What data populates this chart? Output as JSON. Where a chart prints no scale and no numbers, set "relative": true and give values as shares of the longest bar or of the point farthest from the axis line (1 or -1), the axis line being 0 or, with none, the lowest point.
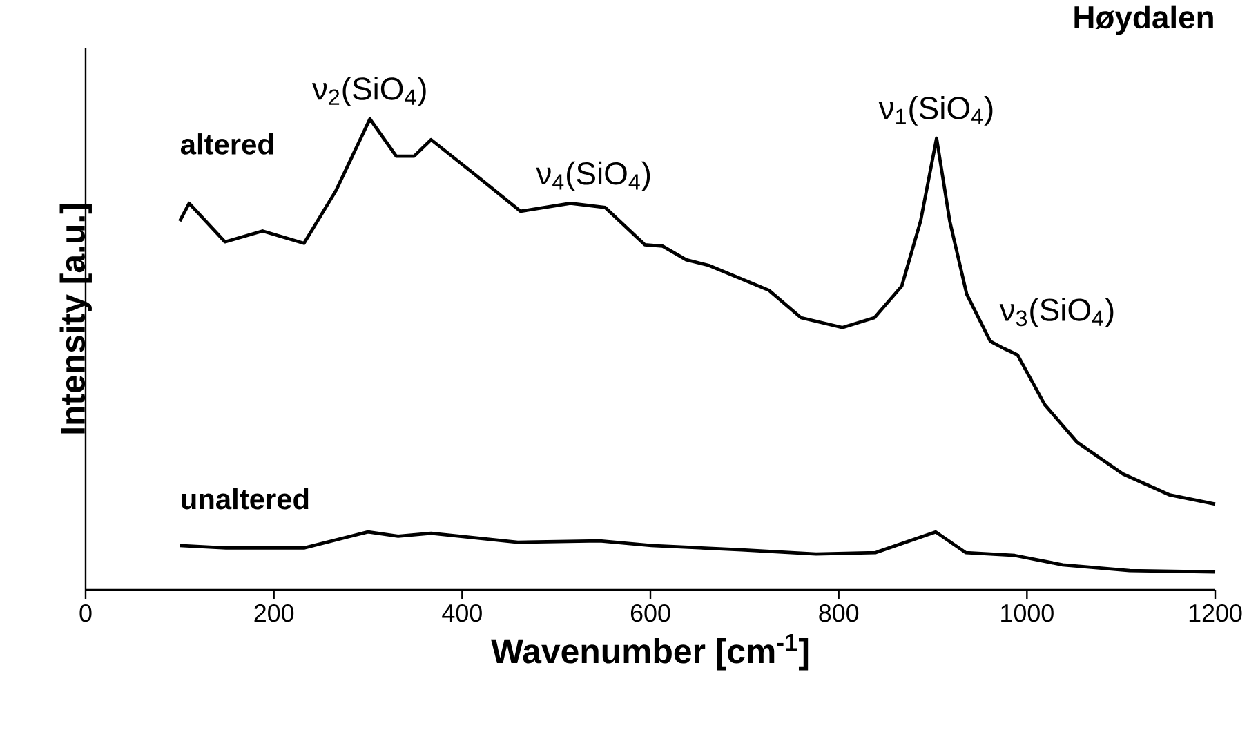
{
  "chart_data": {
    "type": "line",
    "title": "Høydalen",
    "xlabel": "Wavenumber [cm$^{-1}$]",
    "ylabel": "Intensity [a.u.]",
    "relative": true,
    "xlim": [
      0,
      1200
    ],
    "xticks": [
      0,
      200,
      400,
      600,
      800,
      1000,
      1200
    ],
    "line_style": "solid",
    "marker": "none",
    "annotations": [
      {
        "text": "ν$_{2}$(SiO$_{4}$)",
        "x": 302,
        "y": 1.0
      },
      {
        "text": "ν$_{4}$(SiO$_{4}$)",
        "x": 540,
        "y": 0.82
      },
      {
        "text": "ν$_{1}$(SiO$_{4}$)",
        "x": 904,
        "y": 0.959
      },
      {
        "text": "ν$_{3}$(SiO$_{4}$)",
        "x": 975,
        "y": 0.513
      }
    ],
    "series": [
      {
        "name": "altered",
        "color": "#000000",
        "x": [
          100,
          110,
          148,
          188,
          232,
          266,
          302,
          330,
          349,
          367,
          408,
          462,
          515,
          552,
          594,
          613,
          638,
          662,
          726,
          760,
          804,
          838,
          867,
          887,
          904,
          918,
          936,
          961,
          975,
          990,
          1019,
          1053,
          1102,
          1151,
          1200
        ],
        "values": [
          0.783,
          0.821,
          0.739,
          0.762,
          0.736,
          0.848,
          1.0,
          0.921,
          0.921,
          0.956,
          0.891,
          0.804,
          0.821,
          0.812,
          0.733,
          0.73,
          0.701,
          0.689,
          0.636,
          0.578,
          0.557,
          0.578,
          0.645,
          0.783,
          0.959,
          0.783,
          0.628,
          0.528,
          0.513,
          0.499,
          0.393,
          0.314,
          0.246,
          0.202,
          0.182
        ]
      },
      {
        "name": "unaltered",
        "color": "#000000",
        "x": [
          100,
          149,
          232,
          300,
          332,
          367,
          459,
          546,
          601,
          697,
          776,
          839,
          903,
          935,
          987,
          1038,
          1109,
          1200
        ],
        "values": [
          0.094,
          0.089,
          0.089,
          0.123,
          0.114,
          0.12,
          0.101,
          0.104,
          0.094,
          0.085,
          0.076,
          0.079,
          0.123,
          0.079,
          0.073,
          0.053,
          0.041,
          0.038
        ]
      }
    ]
  }
}
